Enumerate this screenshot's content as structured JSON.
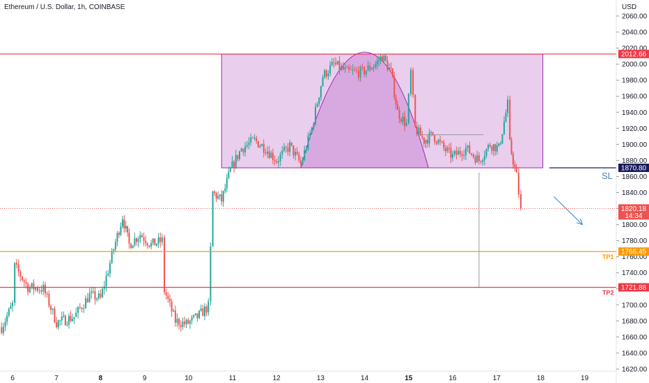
{
  "title": "Ethereum / U.S. Dollar, 1h, COINBASE",
  "currency": "USD",
  "colors": {
    "up": "#26a69a",
    "down": "#ef5350",
    "level_red": "#f23645",
    "level_orange": "#ff9800",
    "level_navy": "#1a1a5e",
    "zone_fill": "#ce93d8",
    "zone_border": "#9c27b0",
    "arrow": "#4a9ac9",
    "grey_line": "#9598a1",
    "current_price_bg": "#ef5350"
  },
  "y_ticks": [
    "2060.00",
    "2040.00",
    "2020.00",
    "2000.00",
    "1980.00",
    "1960.00",
    "1940.00",
    "1920.00",
    "1900.00",
    "1880.00",
    "1860.00",
    "1840.00",
    "1820.00",
    "1800.00",
    "1780.00",
    "1760.00",
    "1740.00",
    "1720.00",
    "1700.00",
    "1680.00",
    "1660.00",
    "1640.00",
    "1620.00"
  ],
  "x_ticks": [
    {
      "label": "6",
      "day": 6,
      "bold": false
    },
    {
      "label": "7",
      "day": 7,
      "bold": false
    },
    {
      "label": "8",
      "day": 8,
      "bold": true
    },
    {
      "label": "9",
      "day": 9,
      "bold": false
    },
    {
      "label": "10",
      "day": 10,
      "bold": false
    },
    {
      "label": "11",
      "day": 11,
      "bold": false
    },
    {
      "label": "12",
      "day": 12,
      "bold": false
    },
    {
      "label": "13",
      "day": 13,
      "bold": false
    },
    {
      "label": "14",
      "day": 14,
      "bold": false
    },
    {
      "label": "15",
      "day": 15,
      "bold": true
    },
    {
      "label": "16",
      "day": 16,
      "bold": false
    },
    {
      "label": "17",
      "day": 17,
      "bold": false
    },
    {
      "label": "18",
      "day": 18,
      "bold": false
    },
    {
      "label": "19",
      "day": 19,
      "bold": false
    }
  ],
  "levels": {
    "resistance": {
      "price": 2012.66,
      "tag": "2012.66"
    },
    "stop_loss": {
      "price": 1870.8,
      "tag": "1870.80",
      "label": "SL"
    },
    "tp1": {
      "price": 1766.45,
      "tag": "1766.45",
      "label": "TP1"
    },
    "tp2": {
      "price": 1721.88,
      "tag": "1721.88",
      "label": "TP2"
    }
  },
  "current_price": {
    "price": 1820.18,
    "tag": "1820.18",
    "countdown": "14:34"
  },
  "chart_data": {
    "type": "candlestick",
    "x_unit": "day",
    "ylim": [
      1620,
      2066
    ],
    "xlim": [
      5.7,
      19.8
    ],
    "series": [
      {
        "name": "ETH/USD",
        "points": [
          {
            "x": 5.75,
            "close": 1672
          },
          {
            "x": 6.0,
            "close": 1700
          },
          {
            "x": 6.05,
            "close": 1748
          },
          {
            "x": 6.35,
            "close": 1722
          },
          {
            "x": 6.7,
            "close": 1720
          },
          {
            "x": 7.0,
            "close": 1678
          },
          {
            "x": 7.4,
            "close": 1685
          },
          {
            "x": 7.75,
            "close": 1712
          },
          {
            "x": 8.0,
            "close": 1708
          },
          {
            "x": 8.3,
            "close": 1770
          },
          {
            "x": 8.5,
            "close": 1810
          },
          {
            "x": 8.65,
            "close": 1775
          },
          {
            "x": 8.9,
            "close": 1788
          },
          {
            "x": 9.15,
            "close": 1775
          },
          {
            "x": 9.4,
            "close": 1780
          },
          {
            "x": 9.45,
            "close": 1718
          },
          {
            "x": 9.7,
            "close": 1680
          },
          {
            "x": 9.95,
            "close": 1676
          },
          {
            "x": 10.2,
            "close": 1685
          },
          {
            "x": 10.45,
            "close": 1698
          },
          {
            "x": 10.55,
            "close": 1840
          },
          {
            "x": 10.75,
            "close": 1830
          },
          {
            "x": 10.95,
            "close": 1868
          },
          {
            "x": 11.2,
            "close": 1895
          },
          {
            "x": 11.5,
            "close": 1905
          },
          {
            "x": 11.75,
            "close": 1895
          },
          {
            "x": 12.0,
            "close": 1880
          },
          {
            "x": 12.3,
            "close": 1898
          },
          {
            "x": 12.55,
            "close": 1875
          },
          {
            "x": 12.8,
            "close": 1920
          },
          {
            "x": 13.05,
            "close": 1985
          },
          {
            "x": 13.3,
            "close": 2000
          },
          {
            "x": 13.6,
            "close": 1990
          },
          {
            "x": 13.95,
            "close": 1990
          },
          {
            "x": 14.25,
            "close": 2000
          },
          {
            "x": 14.4,
            "close": 2010
          },
          {
            "x": 14.6,
            "close": 1990
          },
          {
            "x": 14.75,
            "close": 1940
          },
          {
            "x": 14.95,
            "close": 1925
          },
          {
            "x": 15.05,
            "close": 1990
          },
          {
            "x": 15.15,
            "close": 1920
          },
          {
            "x": 15.35,
            "close": 1905
          },
          {
            "x": 15.55,
            "close": 1912
          },
          {
            "x": 15.8,
            "close": 1895
          },
          {
            "x": 16.0,
            "close": 1885
          },
          {
            "x": 16.3,
            "close": 1895
          },
          {
            "x": 16.6,
            "close": 1880
          },
          {
            "x": 16.85,
            "close": 1900
          },
          {
            "x": 17.05,
            "close": 1895
          },
          {
            "x": 17.25,
            "close": 1950
          },
          {
            "x": 17.3,
            "close": 1900
          },
          {
            "x": 17.45,
            "close": 1860
          },
          {
            "x": 17.55,
            "close": 1820
          }
        ]
      }
    ],
    "annotations": [
      {
        "type": "rectangle",
        "x_start": 10.75,
        "x_end": 18.05,
        "y_low": 1870.8,
        "y_high": 2012.66
      },
      {
        "type": "arc",
        "x_start": 12.55,
        "x_end": 15.45,
        "y_base": 1870.8,
        "y_peak": 2015
      },
      {
        "type": "horizontal_line",
        "price": 2012.66
      },
      {
        "type": "horizontal_line",
        "price": 1870.8,
        "x_start": 18.2
      },
      {
        "type": "horizontal_line",
        "price": 1766.45
      },
      {
        "type": "horizontal_line",
        "price": 1721.88
      },
      {
        "type": "arrow",
        "from": {
          "x": 18.3,
          "y": 1835
        },
        "to": {
          "x": 18.95,
          "y": 1800
        }
      },
      {
        "type": "horizontal_segment",
        "price": 1912,
        "x_start": 15.2,
        "x_end": 16.7
      },
      {
        "type": "vertical_segment",
        "x": 16.6,
        "y_low": 1722,
        "y_high": 1865
      }
    ]
  }
}
